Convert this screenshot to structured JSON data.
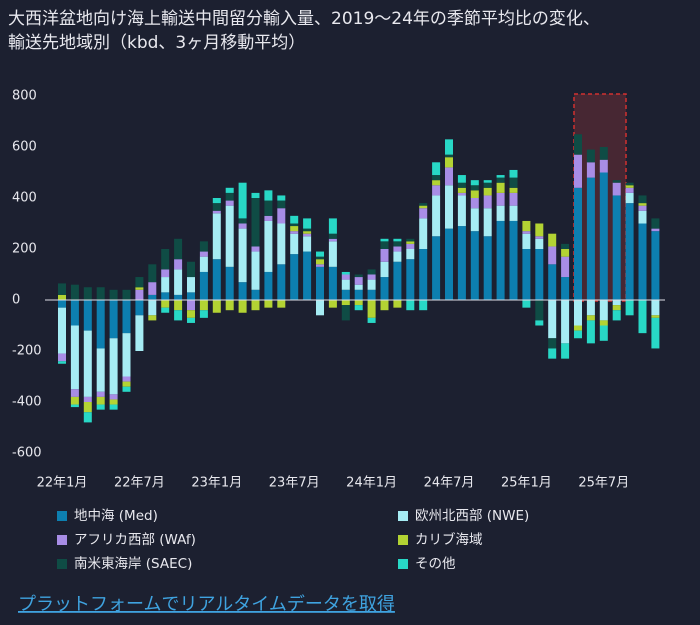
{
  "chart_data": {
    "type": "stacked_bar",
    "title": "大西洋盆地向け海上輸送中間留分輸入量、2019～24年の季節平均比の変化、",
    "subtitle": "輸送先地域別（kbd、3ヶ月移動平均）",
    "link": "プラットフォームでリアルタイムデータを取得",
    "categories": [
      "22年1月",
      null,
      null,
      null,
      null,
      null,
      "22年7月",
      null,
      null,
      null,
      null,
      null,
      "23年1月",
      null,
      null,
      null,
      null,
      null,
      "23年7月",
      null,
      null,
      null,
      null,
      null,
      "24年1月",
      null,
      null,
      null,
      null,
      null,
      "24年7月",
      null,
      null,
      null,
      null,
      null,
      "25年1月",
      null,
      null,
      null,
      null,
      null,
      "25年7月",
      null,
      null,
      null,
      null
    ],
    "ylim": [
      -650,
      830
    ],
    "yticks": [
      -600,
      -400,
      -200,
      0,
      200,
      400,
      600,
      800
    ],
    "series": [
      {
        "name": "地中海 (Med)",
        "color": "#0d7fb0",
        "values": [
          -30,
          -100,
          -120,
          -190,
          -150,
          -130,
          -60,
          20,
          30,
          20,
          30,
          110,
          160,
          130,
          70,
          40,
          110,
          140,
          180,
          190,
          130,
          130,
          40,
          40,
          40,
          90,
          150,
          160,
          200,
          250,
          280,
          290,
          270,
          250,
          310,
          310,
          200,
          200,
          140,
          90,
          440,
          480,
          500,
          410,
          380,
          300,
          270
        ]
      },
      {
        "name": "欧州北西部 (NWE)",
        "color": "#a6ecf4",
        "values": [
          -180,
          -250,
          -260,
          -170,
          -220,
          -170,
          -140,
          -60,
          60,
          100,
          60,
          60,
          180,
          240,
          210,
          150,
          200,
          160,
          80,
          60,
          -60,
          100,
          40,
          20,
          40,
          60,
          40,
          40,
          120,
          160,
          170,
          120,
          90,
          110,
          60,
          60,
          60,
          40,
          -150,
          -170,
          -100,
          -60,
          -80,
          -20,
          40,
          50,
          -60
        ]
      },
      {
        "name": "アフリカ西部 (WAf)",
        "color": "#a88de6",
        "values": [
          -30,
          -30,
          -20,
          -20,
          -20,
          -20,
          40,
          50,
          30,
          40,
          -40,
          20,
          10,
          20,
          20,
          20,
          20,
          60,
          10,
          10,
          10,
          10,
          20,
          30,
          20,
          50,
          20,
          20,
          40,
          40,
          70,
          10,
          40,
          50,
          50,
          50,
          10,
          10,
          70,
          80,
          130,
          60,
          50,
          50,
          20,
          20,
          10
        ]
      },
      {
        "name": "カリブ海域",
        "color": "#b3d333",
        "values": [
          20,
          -30,
          -40,
          -30,
          -20,
          -20,
          10,
          -20,
          -30,
          -40,
          -30,
          -40,
          -50,
          -40,
          -50,
          -40,
          -30,
          -30,
          20,
          10,
          20,
          -30,
          -20,
          -20,
          -70,
          -40,
          -30,
          10,
          10,
          20,
          40,
          20,
          30,
          30,
          40,
          20,
          40,
          50,
          50,
          30,
          -20,
          -20,
          -20,
          -20,
          10,
          10,
          -10
        ]
      },
      {
        "name": "南米東海岸 (SAEC)",
        "color": "#0f4c45",
        "values": [
          45,
          60,
          50,
          50,
          40,
          40,
          40,
          70,
          80,
          80,
          60,
          40,
          30,
          30,
          20,
          190,
          60,
          30,
          10,
          10,
          10,
          20,
          -60,
          10,
          20,
          30,
          20,
          10,
          10,
          20,
          10,
          20,
          20,
          20,
          20,
          40,
          0,
          -80,
          -40,
          20,
          80,
          50,
          50,
          10,
          10,
          30,
          40
        ]
      },
      {
        "name": "その他",
        "color": "#28d8c6",
        "values": [
          -10,
          -10,
          -40,
          -20,
          -20,
          -20,
          0,
          0,
          -20,
          -40,
          -20,
          -30,
          20,
          20,
          140,
          20,
          40,
          20,
          30,
          40,
          20,
          60,
          10,
          -20,
          -20,
          10,
          10,
          -40,
          -40,
          50,
          60,
          30,
          20,
          10,
          10,
          30,
          -30,
          -20,
          -40,
          -60,
          -30,
          -90,
          -60,
          -40,
          -60,
          -130,
          -120
        ]
      }
    ]
  }
}
